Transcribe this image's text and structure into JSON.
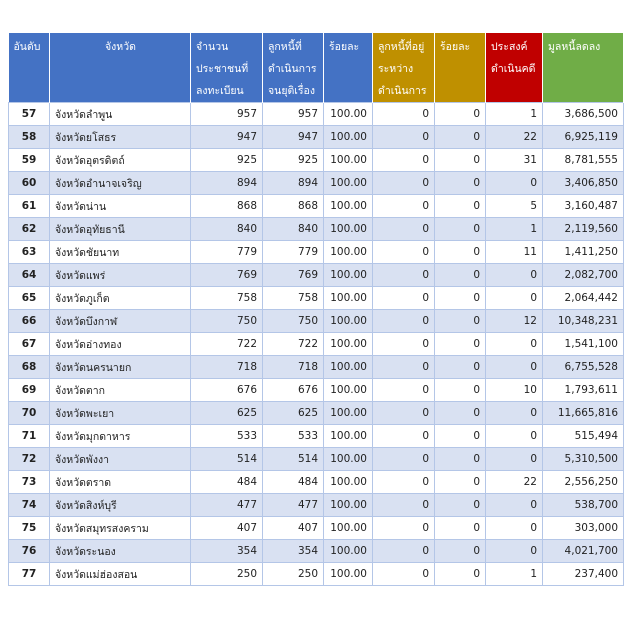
{
  "headers": {
    "rank": "อันดับ",
    "province": "จังหวัด",
    "registered": [
      "จำนวน",
      "ประชาชนที่",
      "ลงทะเบียน"
    ],
    "resolved": [
      "ลูกหนี้ที่",
      "ดำเนินการ",
      "จนยุติเรื่อง"
    ],
    "percent": "ร้อยละ",
    "in_progress": [
      "ลูกหนี้ที่อยู่",
      "ระหว่าง",
      "ดำเนินการ"
    ],
    "percent2": "ร้อยละ",
    "prosecute": [
      "ประสงค์",
      "ดำเนินคดี"
    ],
    "debt_reduced": "มูลหนี้ลดลง"
  },
  "colors": {
    "header_blue": "#4472c4",
    "header_gold": "#bf9000",
    "header_red": "#c00000",
    "header_green": "#70ad47",
    "row_alt": "#d9e1f2"
  },
  "rows": [
    {
      "rank": "57",
      "province": "จังหวัดลำพูน",
      "registered": "957",
      "resolved": "957",
      "percent": "100.00",
      "in_progress": "0",
      "percent2": "0",
      "prosecute": "1",
      "debt": "3,686,500"
    },
    {
      "rank": "58",
      "province": "จังหวัดยโสธร",
      "registered": "947",
      "resolved": "947",
      "percent": "100.00",
      "in_progress": "0",
      "percent2": "0",
      "prosecute": "22",
      "debt": "6,925,119"
    },
    {
      "rank": "59",
      "province": "จังหวัดอุตรดิตถ์",
      "registered": "925",
      "resolved": "925",
      "percent": "100.00",
      "in_progress": "0",
      "percent2": "0",
      "prosecute": "31",
      "debt": "8,781,555"
    },
    {
      "rank": "60",
      "province": "จังหวัดอำนาจเจริญ",
      "registered": "894",
      "resolved": "894",
      "percent": "100.00",
      "in_progress": "0",
      "percent2": "0",
      "prosecute": "0",
      "debt": "3,406,850"
    },
    {
      "rank": "61",
      "province": "จังหวัดน่าน",
      "registered": "868",
      "resolved": "868",
      "percent": "100.00",
      "in_progress": "0",
      "percent2": "0",
      "prosecute": "5",
      "debt": "3,160,487"
    },
    {
      "rank": "62",
      "province": "จังหวัดอุทัยธานี",
      "registered": "840",
      "resolved": "840",
      "percent": "100.00",
      "in_progress": "0",
      "percent2": "0",
      "prosecute": "1",
      "debt": "2,119,560"
    },
    {
      "rank": "63",
      "province": "จังหวัดชัยนาท",
      "registered": "779",
      "resolved": "779",
      "percent": "100.00",
      "in_progress": "0",
      "percent2": "0",
      "prosecute": "11",
      "debt": "1,411,250"
    },
    {
      "rank": "64",
      "province": "จังหวัดแพร่",
      "registered": "769",
      "resolved": "769",
      "percent": "100.00",
      "in_progress": "0",
      "percent2": "0",
      "prosecute": "0",
      "debt": "2,082,700"
    },
    {
      "rank": "65",
      "province": "จังหวัดภูเก็ต",
      "registered": "758",
      "resolved": "758",
      "percent": "100.00",
      "in_progress": "0",
      "percent2": "0",
      "prosecute": "0",
      "debt": "2,064,442"
    },
    {
      "rank": "66",
      "province": "จังหวัดบึงกาฬ",
      "registered": "750",
      "resolved": "750",
      "percent": "100.00",
      "in_progress": "0",
      "percent2": "0",
      "prosecute": "12",
      "debt": "10,348,231"
    },
    {
      "rank": "67",
      "province": "จังหวัดอ่างทอง",
      "registered": "722",
      "resolved": "722",
      "percent": "100.00",
      "in_progress": "0",
      "percent2": "0",
      "prosecute": "0",
      "debt": "1,541,100"
    },
    {
      "rank": "68",
      "province": "จังหวัดนครนายก",
      "registered": "718",
      "resolved": "718",
      "percent": "100.00",
      "in_progress": "0",
      "percent2": "0",
      "prosecute": "0",
      "debt": "6,755,528"
    },
    {
      "rank": "69",
      "province": "จังหวัดตาก",
      "registered": "676",
      "resolved": "676",
      "percent": "100.00",
      "in_progress": "0",
      "percent2": "0",
      "prosecute": "10",
      "debt": "1,793,611"
    },
    {
      "rank": "70",
      "province": "จังหวัดพะเยา",
      "registered": "625",
      "resolved": "625",
      "percent": "100.00",
      "in_progress": "0",
      "percent2": "0",
      "prosecute": "0",
      "debt": "11,665,816"
    },
    {
      "rank": "71",
      "province": "จังหวัดมุกดาหาร",
      "registered": "533",
      "resolved": "533",
      "percent": "100.00",
      "in_progress": "0",
      "percent2": "0",
      "prosecute": "0",
      "debt": "515,494"
    },
    {
      "rank": "72",
      "province": "จังหวัดพังงา",
      "registered": "514",
      "resolved": "514",
      "percent": "100.00",
      "in_progress": "0",
      "percent2": "0",
      "prosecute": "0",
      "debt": "5,310,500"
    },
    {
      "rank": "73",
      "province": "จังหวัดตราด",
      "registered": "484",
      "resolved": "484",
      "percent": "100.00",
      "in_progress": "0",
      "percent2": "0",
      "prosecute": "22",
      "debt": "2,556,250"
    },
    {
      "rank": "74",
      "province": "จังหวัดสิงห์บุรี",
      "registered": "477",
      "resolved": "477",
      "percent": "100.00",
      "in_progress": "0",
      "percent2": "0",
      "prosecute": "0",
      "debt": "538,700"
    },
    {
      "rank": "75",
      "province": "จังหวัดสมุทรสงคราม",
      "registered": "407",
      "resolved": "407",
      "percent": "100.00",
      "in_progress": "0",
      "percent2": "0",
      "prosecute": "0",
      "debt": "303,000"
    },
    {
      "rank": "76",
      "province": "จังหวัดระนอง",
      "registered": "354",
      "resolved": "354",
      "percent": "100.00",
      "in_progress": "0",
      "percent2": "0",
      "prosecute": "0",
      "debt": "4,021,700"
    },
    {
      "rank": "77",
      "province": "จังหวัดแม่ฮ่องสอน",
      "registered": "250",
      "resolved": "250",
      "percent": "100.00",
      "in_progress": "0",
      "percent2": "0",
      "prosecute": "1",
      "debt": "237,400"
    }
  ]
}
